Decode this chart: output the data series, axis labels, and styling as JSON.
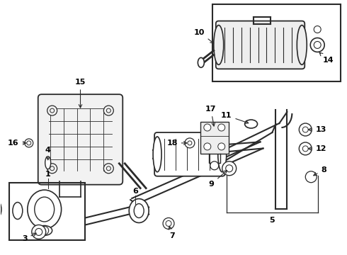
{
  "background_color": "#ffffff",
  "line_color": "#2a2a2a",
  "text_color": "#000000",
  "fig_width": 4.9,
  "fig_height": 3.6,
  "dpi": 100
}
